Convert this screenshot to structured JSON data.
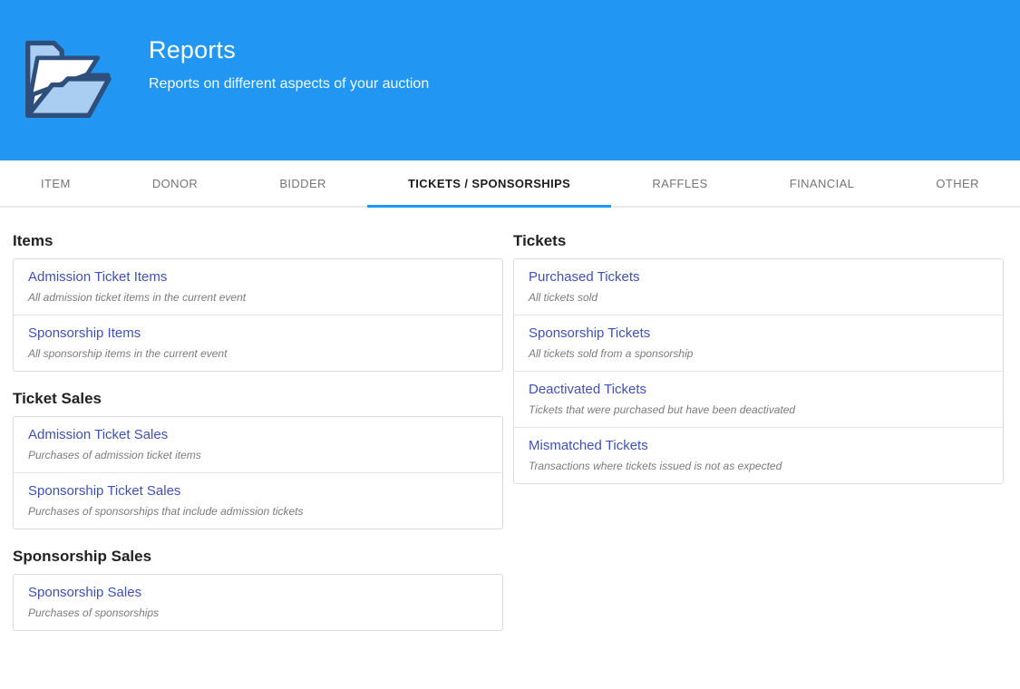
{
  "header": {
    "title": "Reports",
    "subtitle": "Reports on different aspects of your auction",
    "icon": "open-folder-icon"
  },
  "tabs": {
    "items": [
      {
        "label": "ITEM",
        "active": false
      },
      {
        "label": "DONOR",
        "active": false
      },
      {
        "label": "BIDDER",
        "active": false
      },
      {
        "label": "TICKETS / SPONSORSHIPS",
        "active": true
      },
      {
        "label": "RAFFLES",
        "active": false
      },
      {
        "label": "FINANCIAL",
        "active": false
      },
      {
        "label": "OTHER",
        "active": false
      }
    ]
  },
  "columns": {
    "left": [
      {
        "heading": "Items",
        "reports": [
          {
            "title": "Admission Ticket Items",
            "description": "All admission ticket items in the current event"
          },
          {
            "title": "Sponsorship Items",
            "description": "All sponsorship items in the current event"
          }
        ]
      },
      {
        "heading": "Ticket Sales",
        "reports": [
          {
            "title": "Admission Ticket Sales",
            "description": "Purchases of admission ticket items"
          },
          {
            "title": "Sponsorship Ticket Sales",
            "description": "Purchases of sponsorships that include admission tickets"
          }
        ]
      },
      {
        "heading": "Sponsorship Sales",
        "reports": [
          {
            "title": "Sponsorship Sales",
            "description": "Purchases of sponsorships"
          }
        ]
      }
    ],
    "right": [
      {
        "heading": "Tickets",
        "reports": [
          {
            "title": "Purchased Tickets",
            "description": "All tickets sold"
          },
          {
            "title": "Sponsorship Tickets",
            "description": "All tickets sold from a sponsorship"
          },
          {
            "title": "Deactivated Tickets",
            "description": "Tickets that were purchased but have been deactivated"
          },
          {
            "title": "Mismatched Tickets",
            "description": "Transactions where tickets issued is not as expected"
          }
        ]
      }
    ]
  },
  "colors": {
    "header_bg": "#2196F3",
    "active_tab_underline": "#2196F3",
    "report_link": "#3F51B5",
    "icon_fill_light": "#A9CEF2",
    "icon_outline": "#2E4E7C"
  }
}
